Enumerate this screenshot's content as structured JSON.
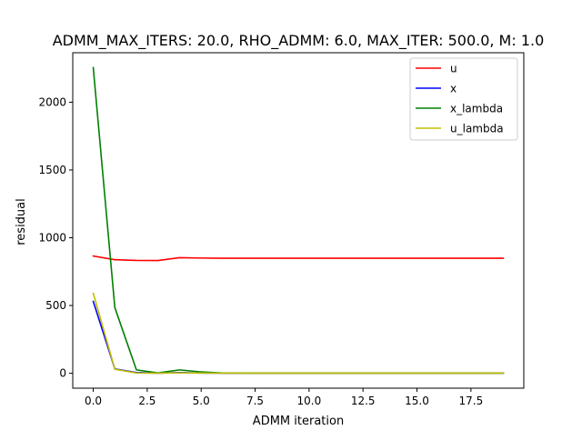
{
  "chart_data": {
    "type": "line",
    "title": "ADMM_MAX_ITERS: 20.0, RHO_ADMM: 6.0, MAX_ITER: 500.0, M: 1.0",
    "xlabel": "ADMM iteration",
    "ylabel": "residual",
    "xlim": [
      -0.95,
      19.95
    ],
    "ylim": [
      -110,
      2365
    ],
    "x_ticks": [
      0.0,
      2.5,
      5.0,
      7.5,
      10.0,
      12.5,
      15.0,
      17.5
    ],
    "x_tick_labels": [
      "0.0",
      "2.5",
      "5.0",
      "7.5",
      "10.0",
      "12.5",
      "15.0",
      "17.5"
    ],
    "y_ticks": [
      0,
      500,
      1000,
      1500,
      2000
    ],
    "y_tick_labels": [
      "0",
      "500",
      "1000",
      "1500",
      "2000"
    ],
    "grid": false,
    "legend_position": "upper right",
    "x": [
      0,
      1,
      2,
      3,
      4,
      5,
      6,
      7,
      8,
      9,
      10,
      11,
      12,
      13,
      14,
      15,
      16,
      17,
      18,
      19
    ],
    "series": [
      {
        "name": "u",
        "color": "#ff0000",
        "values": [
          865,
          838,
          833,
          832,
          853,
          850,
          849,
          849,
          849,
          849,
          849,
          849,
          849,
          849,
          849,
          849,
          849,
          849,
          849,
          849
        ]
      },
      {
        "name": "x",
        "color": "#0000ff",
        "values": [
          530,
          32,
          5,
          1,
          5,
          2,
          1,
          1,
          1,
          1,
          1,
          1,
          1,
          1,
          1,
          1,
          1,
          1,
          1,
          1
        ]
      },
      {
        "name": "x_lambda",
        "color": "#008000",
        "values": [
          2255,
          485,
          25,
          3,
          25,
          10,
          2,
          1,
          1,
          1,
          1,
          1,
          1,
          1,
          1,
          1,
          1,
          1,
          1,
          1
        ]
      },
      {
        "name": "u_lambda",
        "color": "#bfbf00",
        "values": [
          590,
          30,
          2,
          1,
          3,
          2,
          1,
          1,
          1,
          1,
          1,
          1,
          1,
          1,
          1,
          1,
          1,
          1,
          1,
          1
        ]
      }
    ]
  }
}
